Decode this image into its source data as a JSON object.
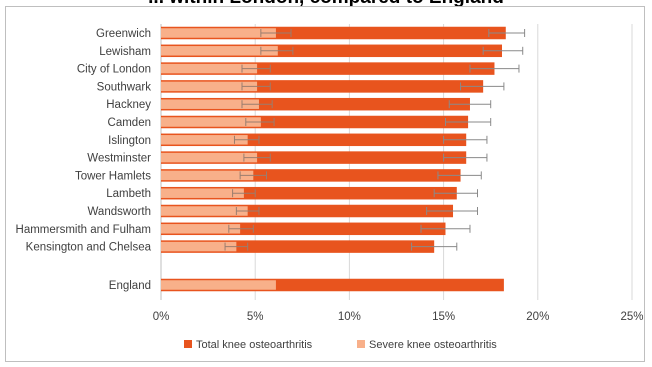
{
  "page_title": "... within London, compared to England",
  "chart_data": {
    "type": "bar",
    "orientation": "horizontal",
    "categories": [
      "Greenwich",
      "Lewisham",
      "City of London",
      "Southwark",
      "Hackney",
      "Camden",
      "Islington",
      "Westminster",
      "Tower Hamlets",
      "Lambeth",
      "Wandsworth",
      "Hammersmith and Fulham",
      "Kensington and Chelsea",
      "England"
    ],
    "series": [
      {
        "name": "Total knee osteoarthritis",
        "color": "#e8541e",
        "values": [
          18.3,
          18.1,
          17.7,
          17.1,
          16.4,
          16.3,
          16.2,
          16.2,
          15.9,
          15.7,
          15.5,
          15.1,
          14.5,
          18.2
        ],
        "error_low": [
          17.4,
          17.1,
          16.4,
          15.9,
          15.3,
          15.1,
          15.0,
          15.0,
          14.7,
          14.5,
          14.1,
          13.8,
          13.3,
          null
        ],
        "error_high": [
          19.3,
          19.2,
          19.0,
          18.2,
          17.5,
          17.5,
          17.3,
          17.3,
          17.0,
          16.8,
          16.8,
          16.4,
          15.7,
          null
        ]
      },
      {
        "name": "Severe knee osteoarthritis",
        "color": "#f8b08a",
        "values": [
          6.1,
          6.2,
          5.1,
          5.1,
          5.2,
          5.3,
          4.6,
          5.1,
          4.9,
          4.4,
          4.6,
          4.2,
          4.0,
          6.1
        ],
        "error_low": [
          5.3,
          5.3,
          4.3,
          4.3,
          4.3,
          4.5,
          3.9,
          4.4,
          4.2,
          3.8,
          4.0,
          3.6,
          3.4,
          null
        ],
        "error_high": [
          6.9,
          7.0,
          5.8,
          5.8,
          5.9,
          6.0,
          5.2,
          5.8,
          5.6,
          5.0,
          5.2,
          4.9,
          4.6,
          null
        ]
      }
    ],
    "xlim": [
      0,
      25
    ],
    "x_tick_values": [
      0,
      5,
      10,
      15,
      20,
      25
    ],
    "x_tick_labels": [
      "0%",
      "5%",
      "10%",
      "15%",
      "20%",
      "25%"
    ],
    "grid": "vertical",
    "legend_position": "bottom",
    "xlabel": "",
    "ylabel": ""
  }
}
